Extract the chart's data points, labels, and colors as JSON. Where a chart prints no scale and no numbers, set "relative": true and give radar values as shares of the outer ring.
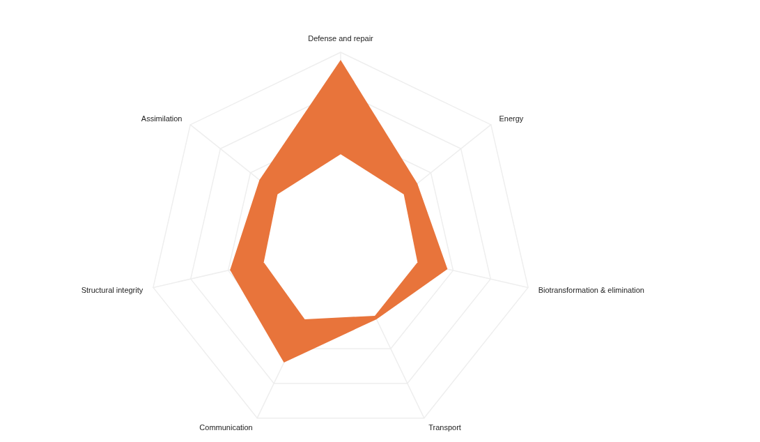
{
  "chart_data": {
    "type": "radar",
    "relative": true,
    "grid": true,
    "categories": [
      "Defense and repair",
      "Energy",
      "Biotransformation & elimination",
      "Transport",
      "Communication",
      "Structural integrity",
      "Assimilation"
    ],
    "series": [
      {
        "color": "#e8743b",
        "values": [
          0.96,
          0.51,
          0.57,
          0.43,
          0.68,
          0.59,
          0.54
        ]
      },
      {
        "color": "#ffffff",
        "values": [
          0.47,
          0.42,
          0.41,
          0.41,
          0.43,
          0.41,
          0.42
        ]
      }
    ]
  }
}
